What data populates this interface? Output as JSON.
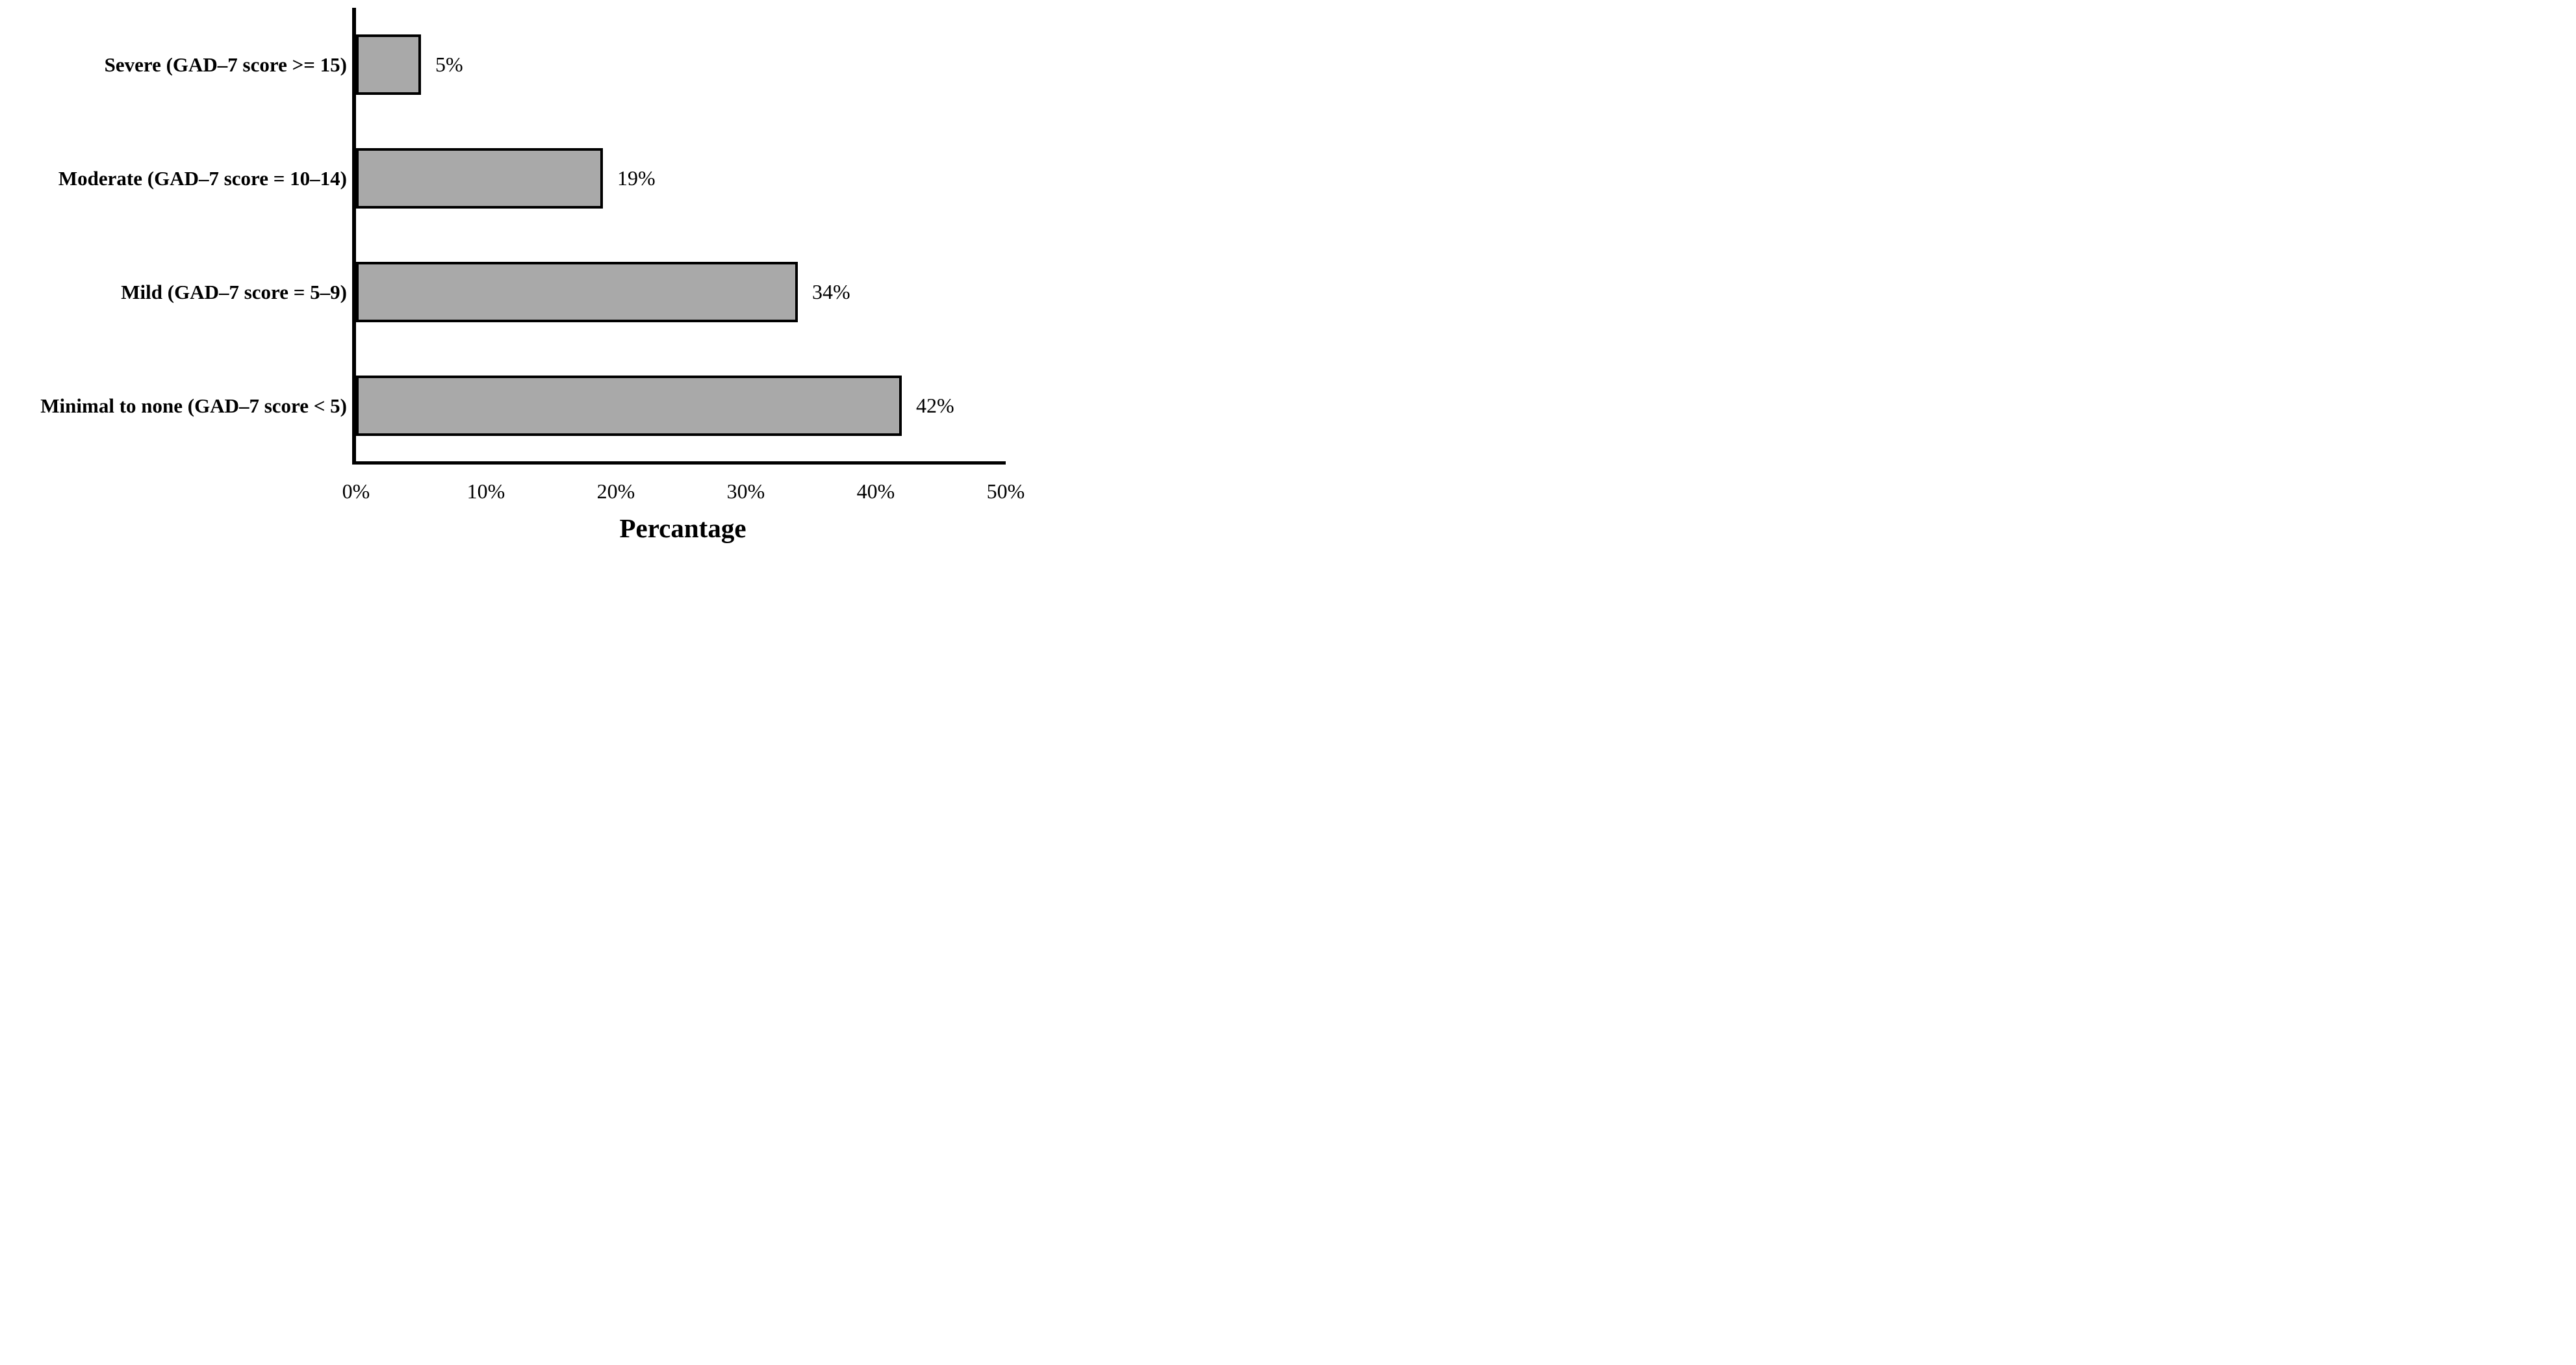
{
  "chart_data": {
    "type": "bar",
    "orientation": "horizontal",
    "title": "",
    "xlabel": "Percantage",
    "ylabel": "",
    "categories": [
      "Severe (GAD–7 score >= 15)",
      "Moderate (GAD–7 score = 10–14)",
      "Mild (GAD–7 score = 5–9)",
      "Minimal to none (GAD–7 score < 5)"
    ],
    "values": [
      5,
      19,
      34,
      42
    ],
    "value_labels": [
      "5%",
      "19%",
      "34%",
      "42%"
    ],
    "x_tick_labels": [
      "0%",
      "10%",
      "20%",
      "30%",
      "40%",
      "50%"
    ],
    "x_tick_values": [
      0,
      10,
      20,
      30,
      40,
      50
    ],
    "xlim": [
      0,
      50
    ],
    "grid": false,
    "legend": false,
    "colors": {
      "bar_fill": "#a9a9a9",
      "bar_border": "#000000",
      "axis": "#000000",
      "text": "#000000",
      "background": "#ffffff"
    }
  }
}
